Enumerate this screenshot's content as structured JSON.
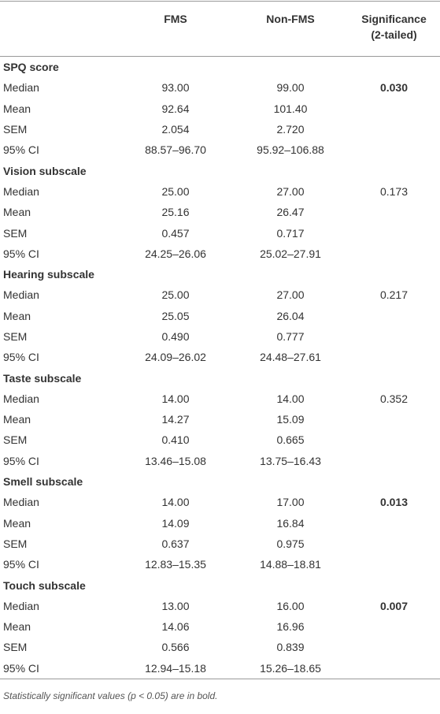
{
  "table": {
    "header": [
      "FMS",
      "Non-FMS",
      "Significance (2-tailed)"
    ],
    "sections": [
      {
        "title": "SPQ score",
        "significance": "0.030",
        "bold": true,
        "rows": [
          [
            "Median",
            "93.00",
            "99.00"
          ],
          [
            "Mean",
            "92.64",
            "101.40"
          ],
          [
            "SEM",
            "2.054",
            "2.720"
          ],
          [
            "95% CI",
            "88.57–96.70",
            "95.92–106.88"
          ]
        ]
      },
      {
        "title": "Vision subscale",
        "significance": "0.173",
        "bold": false,
        "rows": [
          [
            "Median",
            "25.00",
            "27.00"
          ],
          [
            "Mean",
            "25.16",
            "26.47"
          ],
          [
            "SEM",
            "0.457",
            "0.717"
          ],
          [
            "95% CI",
            "24.25–26.06",
            "25.02–27.91"
          ]
        ]
      },
      {
        "title": "Hearing subscale",
        "significance": "0.217",
        "bold": false,
        "rows": [
          [
            "Median",
            "25.00",
            "27.00"
          ],
          [
            "Mean",
            "25.05",
            "26.04"
          ],
          [
            "SEM",
            "0.490",
            "0.777"
          ],
          [
            "95% CI",
            "24.09–26.02",
            "24.48–27.61"
          ]
        ]
      },
      {
        "title": "Taste subscale",
        "significance": "0.352",
        "bold": false,
        "rows": [
          [
            "Median",
            "14.00",
            "14.00"
          ],
          [
            "Mean",
            "14.27",
            "15.09"
          ],
          [
            "SEM",
            "0.410",
            "0.665"
          ],
          [
            "95% CI",
            "13.46–15.08",
            "13.75–16.43"
          ]
        ]
      },
      {
        "title": "Smell subscale",
        "significance": "0.013",
        "bold": true,
        "rows": [
          [
            "Median",
            "14.00",
            "17.00"
          ],
          [
            "Mean",
            "14.09",
            "16.84"
          ],
          [
            "SEM",
            "0.637",
            "0.975"
          ],
          [
            "95% CI",
            "12.83–15.35",
            "14.88–18.81"
          ]
        ]
      },
      {
        "title": "Touch subscale",
        "significance": "0.007",
        "bold": true,
        "rows": [
          [
            "Median",
            "13.00",
            "16.00"
          ],
          [
            "Mean",
            "14.06",
            "16.96"
          ],
          [
            "SEM",
            "0.566",
            "0.839"
          ],
          [
            "95% CI",
            "12.94–15.18",
            "15.26–18.65"
          ]
        ]
      }
    ],
    "footnote": "Statistically significant values (p < 0.05) are in bold."
  }
}
